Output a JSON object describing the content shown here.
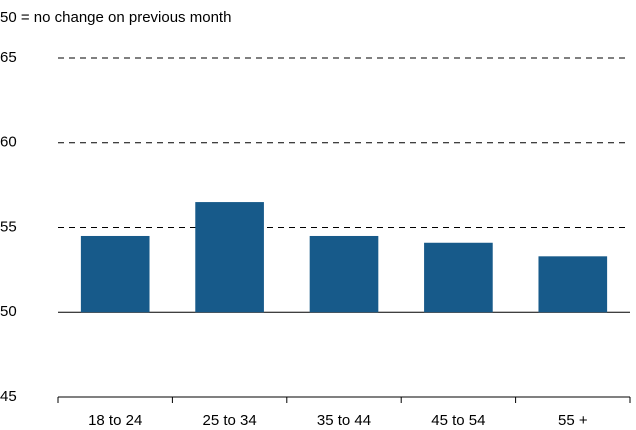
{
  "chart_data": {
    "type": "bar",
    "subtitle": "50 = no change on previous month",
    "categories": [
      "18 to 24",
      "25 to 34",
      "35 to 44",
      "45 to 54",
      "55 +"
    ],
    "values": [
      54.5,
      56.5,
      54.5,
      54.1,
      53.3
    ],
    "color": "#175a8a",
    "baseline": 50,
    "ylim": [
      45,
      65
    ],
    "yticks": [
      45,
      50,
      55,
      60,
      65
    ],
    "grid": true
  }
}
